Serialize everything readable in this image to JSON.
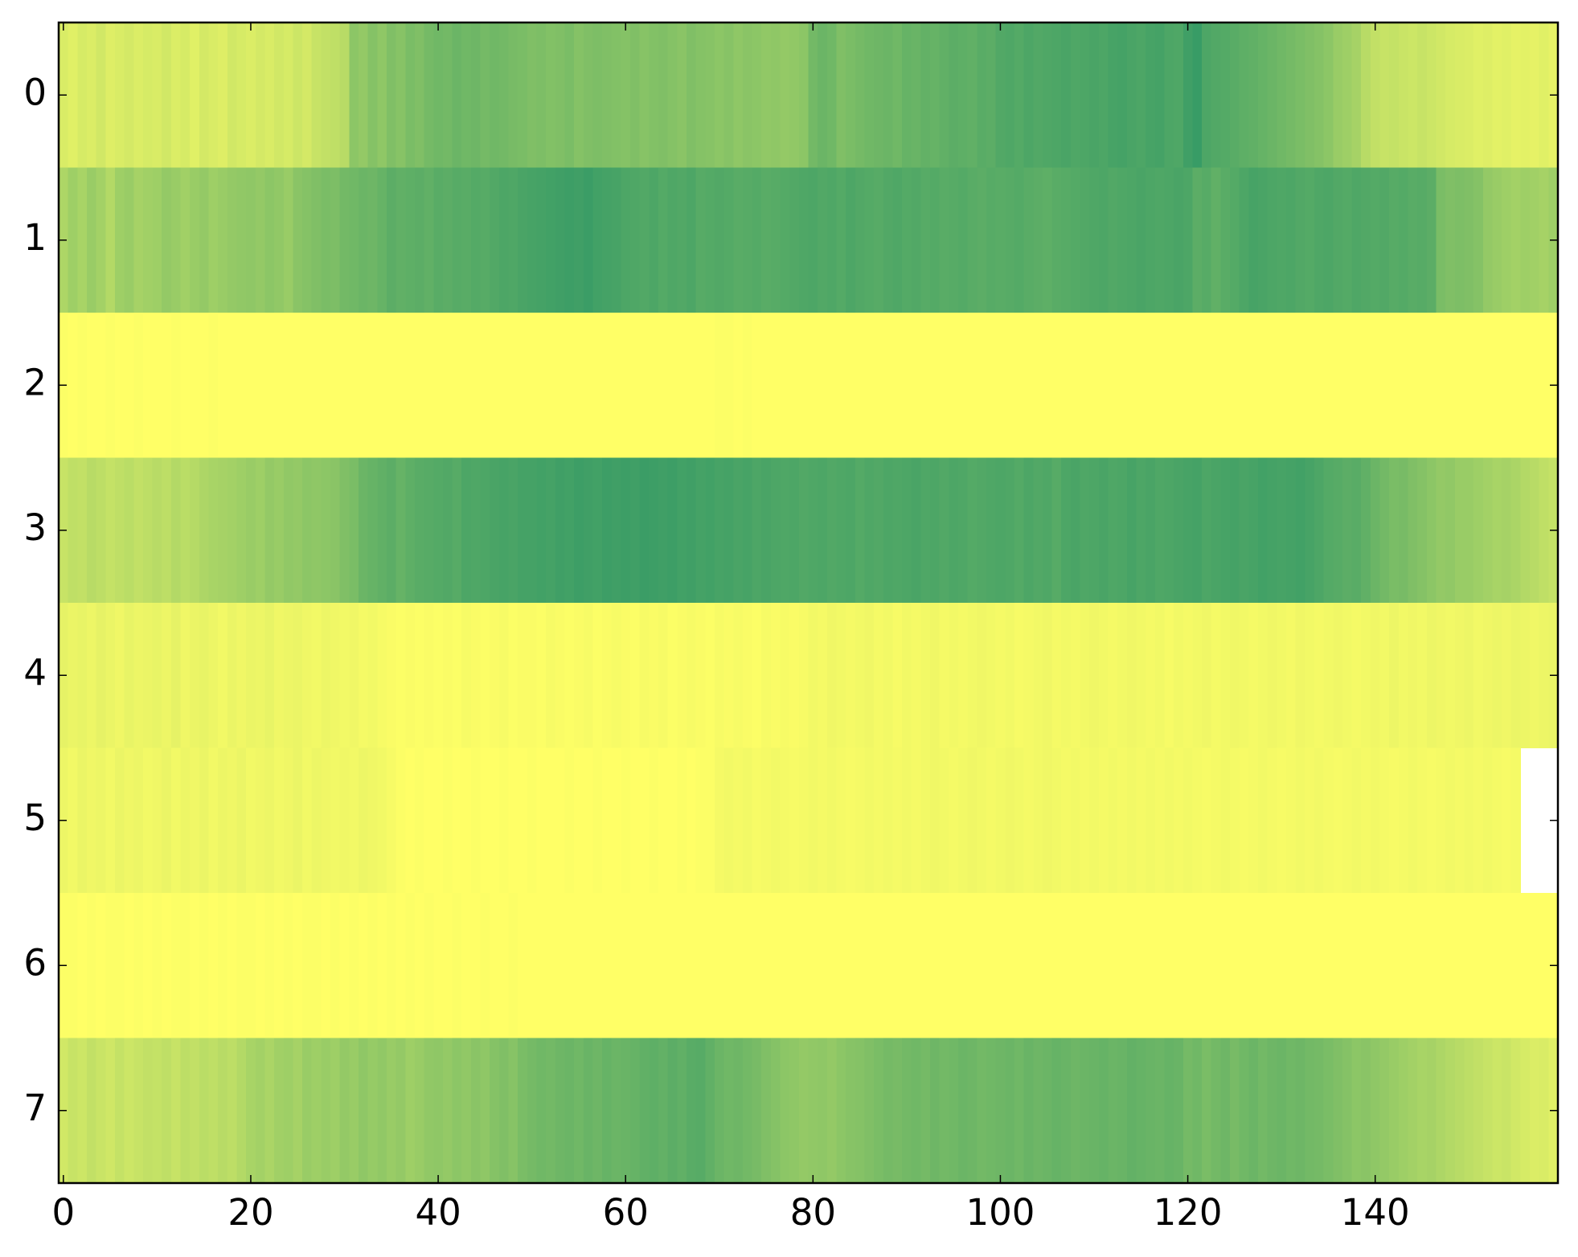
{
  "chart_data": {
    "type": "heatmap",
    "colormap": "summer",
    "xlim": [
      -0.5,
      159.5
    ],
    "ylim": [
      7.5,
      -0.5
    ],
    "xticks": [
      0,
      20,
      40,
      60,
      80,
      100,
      120,
      140
    ],
    "yticks": [
      0,
      1,
      2,
      3,
      4,
      5,
      6,
      7
    ],
    "z": [
      [
        0.85,
        0.88,
        0.84,
        0.86,
        0.82,
        0.87,
        0.85,
        0.83,
        0.86,
        0.84,
        0.85,
        0.82,
        0.86,
        0.84,
        0.88,
        0.83,
        0.85,
        0.87,
        0.82,
        0.84,
        0.86,
        0.83,
        0.85,
        0.82,
        0.84,
        0.8,
        0.83,
        0.78,
        0.76,
        0.75,
        0.72,
        0.55,
        0.58,
        0.52,
        0.56,
        0.5,
        0.53,
        0.48,
        0.5,
        0.46,
        0.44,
        0.45,
        0.42,
        0.44,
        0.43,
        0.46,
        0.44,
        0.45,
        0.47,
        0.48,
        0.5,
        0.49,
        0.51,
        0.5,
        0.48,
        0.52,
        0.5,
        0.49,
        0.5,
        0.51,
        0.52,
        0.5,
        0.53,
        0.51,
        0.5,
        0.52,
        0.54,
        0.5,
        0.52,
        0.53,
        0.55,
        0.53,
        0.56,
        0.54,
        0.55,
        0.57,
        0.56,
        0.58,
        0.57,
        0.55,
        0.45,
        0.42,
        0.44,
        0.5,
        0.48,
        0.46,
        0.44,
        0.43,
        0.42,
        0.44,
        0.4,
        0.41,
        0.39,
        0.4,
        0.38,
        0.36,
        0.37,
        0.38,
        0.35,
        0.36,
        0.32,
        0.31,
        0.33,
        0.3,
        0.32,
        0.31,
        0.3,
        0.29,
        0.31,
        0.3,
        0.29,
        0.3,
        0.28,
        0.27,
        0.29,
        0.3,
        0.28,
        0.27,
        0.3,
        0.31,
        0.25,
        0.22,
        0.3,
        0.32,
        0.33,
        0.35,
        0.37,
        0.38,
        0.4,
        0.42,
        0.44,
        0.46,
        0.48,
        0.5,
        0.52,
        0.55,
        0.6,
        0.62,
        0.65,
        0.72,
        0.76,
        0.78,
        0.77,
        0.79,
        0.8,
        0.78,
        0.8,
        0.82,
        0.84,
        0.85,
        0.86,
        0.88,
        0.87,
        0.89,
        0.88,
        0.9,
        0.89,
        0.9,
        0.88,
        0.9
      ],
      [
        0.68,
        0.62,
        0.66,
        0.6,
        0.64,
        0.7,
        0.62,
        0.6,
        0.65,
        0.63,
        0.62,
        0.58,
        0.6,
        0.63,
        0.6,
        0.58,
        0.62,
        0.6,
        0.58,
        0.57,
        0.56,
        0.58,
        0.55,
        0.57,
        0.6,
        0.54,
        0.52,
        0.5,
        0.48,
        0.49,
        0.45,
        0.44,
        0.42,
        0.43,
        0.4,
        0.36,
        0.38,
        0.37,
        0.36,
        0.38,
        0.35,
        0.36,
        0.34,
        0.35,
        0.33,
        0.34,
        0.32,
        0.3,
        0.31,
        0.29,
        0.28,
        0.27,
        0.26,
        0.25,
        0.24,
        0.25,
        0.23,
        0.26,
        0.27,
        0.28,
        0.3,
        0.31,
        0.32,
        0.3,
        0.33,
        0.31,
        0.32,
        0.3,
        0.34,
        0.33,
        0.32,
        0.33,
        0.35,
        0.34,
        0.33,
        0.35,
        0.34,
        0.33,
        0.32,
        0.31,
        0.3,
        0.32,
        0.31,
        0.33,
        0.3,
        0.32,
        0.33,
        0.34,
        0.32,
        0.31,
        0.33,
        0.32,
        0.34,
        0.33,
        0.35,
        0.34,
        0.33,
        0.35,
        0.36,
        0.34,
        0.35,
        0.34,
        0.33,
        0.35,
        0.36,
        0.37,
        0.35,
        0.34,
        0.33,
        0.32,
        0.31,
        0.3,
        0.32,
        0.31,
        0.3,
        0.29,
        0.3,
        0.31,
        0.3,
        0.29,
        0.3,
        0.36,
        0.34,
        0.38,
        0.35,
        0.33,
        0.3,
        0.28,
        0.29,
        0.3,
        0.31,
        0.3,
        0.32,
        0.33,
        0.31,
        0.3,
        0.32,
        0.33,
        0.31,
        0.32,
        0.33,
        0.32,
        0.34,
        0.33,
        0.35,
        0.34,
        0.36,
        0.48,
        0.5,
        0.49,
        0.5,
        0.52,
        0.58,
        0.6,
        0.62,
        0.64,
        0.62,
        0.63,
        0.65,
        0.62
      ],
      [
        0.99,
        1,
        0.99,
        1,
        1,
        0.99,
        1,
        1,
        0.99,
        1,
        1,
        1,
        0.99,
        1,
        1,
        1,
        0.99,
        1,
        1,
        1,
        1,
        1,
        1,
        1,
        1,
        1,
        1,
        1,
        1,
        1,
        1,
        1,
        1,
        1,
        1,
        1,
        1,
        1,
        1,
        1,
        1,
        1,
        1,
        1,
        1,
        1,
        1,
        1,
        1,
        1,
        1,
        1,
        1,
        1,
        1,
        1,
        1,
        1,
        1,
        1,
        1,
        1,
        1,
        1,
        1,
        1,
        1,
        1,
        1,
        1,
        0.99,
        0.99,
        1,
        0.99,
        1,
        1,
        1,
        1,
        1,
        1,
        1,
        1,
        1,
        1,
        1,
        1,
        1,
        1,
        1,
        1,
        1,
        1,
        1,
        1,
        1,
        1,
        1,
        1,
        1,
        1,
        1,
        1,
        1,
        1,
        1,
        1,
        1,
        1,
        1,
        1,
        1,
        1,
        1,
        1,
        1,
        1,
        1,
        1,
        1,
        1,
        1,
        1,
        1,
        1,
        1,
        1,
        1,
        1,
        1,
        1,
        1,
        1,
        1,
        1,
        1,
        1,
        1,
        1,
        1,
        1,
        1,
        1,
        1,
        1,
        1,
        1,
        1,
        1,
        1,
        1,
        1,
        1,
        1,
        1,
        1,
        1,
        1,
        1,
        1,
        1
      ],
      [
        0.78,
        0.75,
        0.76,
        0.72,
        0.74,
        0.77,
        0.75,
        0.73,
        0.76,
        0.74,
        0.72,
        0.74,
        0.7,
        0.73,
        0.71,
        0.68,
        0.66,
        0.65,
        0.64,
        0.62,
        0.6,
        0.62,
        0.58,
        0.6,
        0.57,
        0.58,
        0.55,
        0.56,
        0.55,
        0.54,
        0.5,
        0.48,
        0.42,
        0.4,
        0.38,
        0.36,
        0.4,
        0.37,
        0.35,
        0.34,
        0.33,
        0.32,
        0.34,
        0.3,
        0.31,
        0.3,
        0.29,
        0.28,
        0.29,
        0.27,
        0.27,
        0.26,
        0.27,
        0.25,
        0.26,
        0.24,
        0.25,
        0.26,
        0.24,
        0.25,
        0.24,
        0.25,
        0.23,
        0.24,
        0.25,
        0.24,
        0.26,
        0.25,
        0.27,
        0.26,
        0.28,
        0.27,
        0.29,
        0.28,
        0.3,
        0.29,
        0.3,
        0.31,
        0.3,
        0.32,
        0.31,
        0.3,
        0.32,
        0.31,
        0.3,
        0.33,
        0.31,
        0.32,
        0.3,
        0.31,
        0.3,
        0.29,
        0.31,
        0.3,
        0.32,
        0.3,
        0.31,
        0.33,
        0.32,
        0.31,
        0.3,
        0.31,
        0.33,
        0.3,
        0.32,
        0.31,
        0.34,
        0.3,
        0.29,
        0.31,
        0.3,
        0.29,
        0.31,
        0.3,
        0.28,
        0.3,
        0.29,
        0.31,
        0.3,
        0.29,
        0.28,
        0.27,
        0.3,
        0.29,
        0.28,
        0.27,
        0.29,
        0.28,
        0.26,
        0.27,
        0.28,
        0.27,
        0.26,
        0.28,
        0.3,
        0.33,
        0.34,
        0.36,
        0.35,
        0.38,
        0.42,
        0.45,
        0.48,
        0.47,
        0.5,
        0.52,
        0.55,
        0.58,
        0.57,
        0.6,
        0.6,
        0.62,
        0.64,
        0.66,
        0.65,
        0.67,
        0.7,
        0.72,
        0.75,
        0.77
      ],
      [
        0.9,
        0.92,
        0.91,
        0.93,
        0.9,
        0.92,
        0.94,
        0.91,
        0.93,
        0.92,
        0.91,
        0.93,
        0.9,
        0.94,
        0.92,
        0.91,
        0.93,
        0.95,
        0.92,
        0.94,
        0.92,
        0.93,
        0.91,
        0.94,
        0.93,
        0.92,
        0.94,
        0.95,
        0.93,
        0.94,
        0.95,
        0.94,
        0.96,
        0.95,
        0.97,
        0.98,
        0.99,
        0.98,
        0.99,
        0.98,
        0.99,
        0.98,
        0.99,
        0.97,
        0.98,
        0.99,
        0.98,
        0.97,
        0.99,
        0.98,
        0.98,
        0.99,
        0.97,
        0.98,
        0.99,
        0.98,
        0.97,
        0.99,
        0.98,
        0.97,
        0.98,
        0.99,
        0.97,
        0.98,
        0.97,
        0.99,
        0.98,
        0.97,
        0.98,
        0.99,
        0.97,
        0.98,
        0.97,
        0.98,
        0.99,
        0.97,
        0.98,
        0.97,
        0.98,
        0.97,
        0.95,
        0.96,
        0.94,
        0.95,
        0.96,
        0.95,
        0.94,
        0.96,
        0.95,
        0.97,
        0.95,
        0.96,
        0.95,
        0.94,
        0.96,
        0.95,
        0.96,
        0.95,
        0.94,
        0.95,
        0.96,
        0.95,
        0.97,
        0.96,
        0.95,
        0.94,
        0.96,
        0.95,
        0.96,
        0.95,
        0.94,
        0.95,
        0.96,
        0.95,
        0.94,
        0.95,
        0.96,
        0.95,
        0.97,
        0.95,
        0.96,
        0.95,
        0.94,
        0.96,
        0.95,
        0.94,
        0.95,
        0.96,
        0.95,
        0.94,
        0.95,
        0.96,
        0.94,
        0.95,
        0.96,
        0.95,
        0.94,
        0.95,
        0.96,
        0.95,
        0.94,
        0.95,
        0.93,
        0.95,
        0.94,
        0.95,
        0.93,
        0.94,
        0.95,
        0.94,
        0.93,
        0.95,
        0.94,
        0.93,
        0.94,
        0.92,
        0.93,
        0.94,
        0.93,
        0.92
      ],
      [
        0.93,
        0.95,
        0.92,
        0.94,
        0.93,
        0.95,
        0.92,
        0.94,
        0.93,
        0.95,
        0.94,
        0.92,
        0.95,
        0.93,
        0.94,
        0.92,
        0.95,
        0.93,
        0.94,
        0.92,
        0.95,
        0.94,
        0.93,
        0.95,
        0.94,
        0.92,
        0.95,
        0.93,
        0.94,
        0.95,
        0.94,
        0.95,
        0.93,
        0.94,
        0.95,
        0.97,
        0.99,
        1,
        0.99,
        1,
        1,
        0.99,
        1,
        1,
        0.99,
        1,
        1,
        0.99,
        1,
        1,
        0.99,
        1,
        1,
        1,
        0.99,
        1,
        1,
        0.99,
        1,
        1,
        0.99,
        1,
        1,
        0.99,
        1,
        1,
        0.99,
        1,
        0.99,
        0.99,
        0.96,
        0.95,
        0.96,
        0.95,
        0.97,
        0.96,
        0.95,
        0.96,
        0.97,
        0.96,
        0.95,
        0.96,
        0.95,
        0.96,
        0.97,
        0.96,
        0.95,
        0.96,
        0.95,
        0.96,
        0.95,
        0.96,
        0.95,
        0.94,
        0.95,
        0.96,
        0.95,
        0.94,
        0.95,
        0.96,
        0.95,
        0.94,
        0.95,
        0.96,
        0.95,
        0.94,
        0.95,
        0.96,
        0.95,
        0.96,
        0.95,
        0.96,
        0.95,
        0.96,
        0.95,
        0.96,
        0.95,
        0.96,
        0.95,
        0.96,
        0.95,
        0.96,
        0.97,
        0.96,
        0.95,
        0.96,
        0.97,
        0.96,
        0.95,
        0.96,
        0.97,
        0.96,
        0.95,
        0.96,
        0.95,
        0.96,
        0.97,
        0.96,
        0.95,
        0.96,
        0.95,
        0.96,
        0.97,
        0.96,
        0.95,
        0.96,
        0.97,
        0.96,
        0.95,
        0.96,
        0.95,
        0.96,
        0.95,
        0.96,
        0.97,
        0.96
      ],
      [
        0.99,
        0.99,
        1,
        0.99,
        1,
        0.99,
        0.99,
        1,
        0.99,
        1,
        0.99,
        1,
        0.99,
        0.99,
        1,
        0.99,
        1,
        0.99,
        1,
        0.99,
        0.99,
        1,
        0.99,
        1,
        0.99,
        1,
        0.99,
        0.99,
        1,
        0.99,
        1,
        0.99,
        1,
        0.99,
        1,
        0.99,
        1,
        0.99,
        1,
        0.99,
        1,
        1,
        0.99,
        1,
        1,
        0.99,
        1,
        1,
        0.99,
        1,
        1,
        1,
        1,
        1,
        1,
        1,
        1,
        1,
        1,
        1,
        1,
        1,
        1,
        1,
        1,
        1,
        1,
        1,
        1,
        1,
        1,
        1,
        1,
        1,
        1,
        1,
        1,
        1,
        1,
        1,
        1,
        1,
        1,
        1,
        1,
        1,
        1,
        1,
        1,
        1,
        1,
        1,
        1,
        1,
        1,
        1,
        1,
        1,
        1,
        1,
        1,
        1,
        1,
        1,
        1,
        1,
        1,
        1,
        1,
        1,
        1,
        1,
        1,
        1,
        1,
        1,
        1,
        1,
        1,
        1,
        1,
        1,
        1,
        1,
        1,
        1,
        1,
        1,
        1,
        1,
        1,
        1,
        1,
        1,
        1,
        1,
        1,
        1,
        1,
        1,
        1,
        1,
        1,
        1,
        1,
        1,
        1,
        1,
        1,
        1,
        1,
        1,
        1,
        1,
        1,
        1,
        1,
        1,
        1,
        1
      ],
      [
        0.82,
        0.78,
        0.8,
        0.76,
        0.79,
        0.81,
        0.77,
        0.8,
        0.78,
        0.76,
        0.77,
        0.75,
        0.78,
        0.74,
        0.76,
        0.73,
        0.75,
        0.72,
        0.74,
        0.7,
        0.66,
        0.64,
        0.67,
        0.63,
        0.62,
        0.65,
        0.6,
        0.62,
        0.6,
        0.62,
        0.58,
        0.6,
        0.56,
        0.59,
        0.57,
        0.6,
        0.58,
        0.62,
        0.6,
        0.57,
        0.56,
        0.58,
        0.55,
        0.57,
        0.54,
        0.56,
        0.52,
        0.5,
        0.53,
        0.48,
        0.46,
        0.44,
        0.45,
        0.43,
        0.42,
        0.44,
        0.41,
        0.43,
        0.4,
        0.42,
        0.41,
        0.4,
        0.38,
        0.37,
        0.39,
        0.36,
        0.38,
        0.35,
        0.34,
        0.38,
        0.42,
        0.44,
        0.43,
        0.45,
        0.47,
        0.5,
        0.52,
        0.55,
        0.56,
        0.58,
        0.57,
        0.56,
        0.58,
        0.55,
        0.53,
        0.52,
        0.5,
        0.48,
        0.46,
        0.47,
        0.45,
        0.44,
        0.46,
        0.43,
        0.45,
        0.44,
        0.42,
        0.43,
        0.45,
        0.44,
        0.43,
        0.42,
        0.44,
        0.41,
        0.43,
        0.42,
        0.4,
        0.41,
        0.43,
        0.42,
        0.41,
        0.4,
        0.42,
        0.41,
        0.39,
        0.4,
        0.41,
        0.42,
        0.4,
        0.41,
        0.46,
        0.44,
        0.48,
        0.45,
        0.43,
        0.47,
        0.44,
        0.42,
        0.45,
        0.43,
        0.42,
        0.44,
        0.43,
        0.45,
        0.46,
        0.48,
        0.5,
        0.52,
        0.55,
        0.54,
        0.56,
        0.58,
        0.6,
        0.62,
        0.64,
        0.66,
        0.65,
        0.68,
        0.7,
        0.72,
        0.74,
        0.76,
        0.78,
        0.8,
        0.79,
        0.82,
        0.84,
        0.86,
        0.85,
        0.88
      ]
    ]
  }
}
